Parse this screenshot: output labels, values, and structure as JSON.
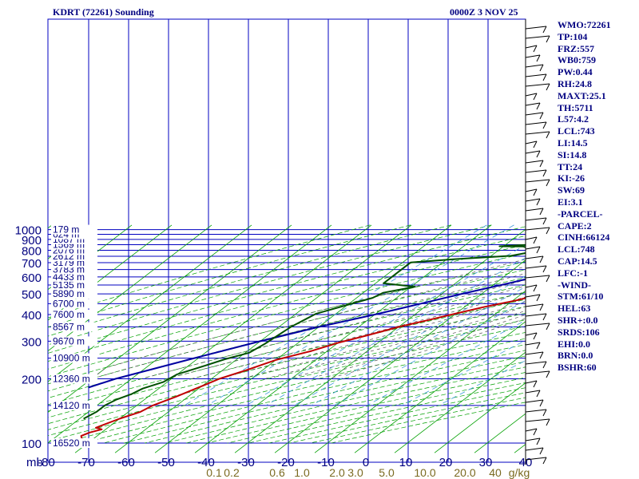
{
  "header": {
    "title": "KDRT (72261) Sounding",
    "datetime": "0000Z  3 NOV 25"
  },
  "indices": [
    "WMO:72261",
    "TP:104",
    "FRZ:557",
    "WB0:759",
    "PW:0.44",
    "RH:24.8",
    "MAXT:25.1",
    "TH:5711",
    "L57:4.2",
    "LCL:743",
    "LI:14.5",
    "SI:14.8",
    "TT:24",
    "KI:-26",
    "SW:69",
    "EI:3.1",
    "-PARCEL-",
    "CAPE:2",
    "CINH:66124",
    "LCL:748",
    "CAP:14.5",
    "LFC:-1",
    "-WIND-",
    "STM:61/10",
    "HEL:63",
    "SHR+:0.0",
    "SRDS:106",
    "EHI:0.0",
    "BRN:0.0",
    "BSHR:60"
  ],
  "colors": {
    "grid": "#0000c0",
    "label": "#000080",
    "dry_adiabat": "#00a000",
    "moist_adiabat": "#505050",
    "mixing_ratio": "#3c9ad8",
    "temperature": "#c00000",
    "dewpoint": "#005000",
    "parcel": "#0000a0",
    "mixing_label": "#7a6a20"
  },
  "chart_data": {
    "type": "skew-t",
    "xlabel": "mb",
    "temperature_ticks": [
      -80,
      -70,
      -60,
      -50,
      -40,
      -30,
      -20,
      -10,
      0,
      10,
      20,
      30,
      40
    ],
    "temperature_tick_labels": [
      "-80",
      "-70",
      "-60",
      "-50",
      "-40",
      "-30",
      "-20",
      "-10",
      "0",
      "10",
      "20",
      "30",
      "40"
    ],
    "pressure_levels": [
      100,
      200,
      300,
      400,
      500,
      600,
      700,
      800,
      900,
      1000
    ],
    "pressure_tick_labels": [
      "100",
      "200",
      "300",
      "400",
      "500",
      "600",
      "700",
      "800",
      "900",
      "1000"
    ],
    "height_labels": [
      {
        "p": 100,
        "label": "16520 m"
      },
      {
        "p": 150,
        "label": "14120 m"
      },
      {
        "p": 200,
        "label": "12360 m"
      },
      {
        "p": 250,
        "label": "10900 m"
      },
      {
        "p": 300,
        "label": "9670 m"
      },
      {
        "p": 350,
        "label": "8567 m"
      },
      {
        "p": 400,
        "label": "7600 m"
      },
      {
        "p": 450,
        "label": "6700 m"
      },
      {
        "p": 500,
        "label": "5890 m"
      },
      {
        "p": 550,
        "label": "5135 m"
      },
      {
        "p": 600,
        "label": "4433 m"
      },
      {
        "p": 650,
        "label": "3783 m"
      },
      {
        "p": 700,
        "label": "3179 m"
      },
      {
        "p": 750,
        "label": "2612 m"
      },
      {
        "p": 800,
        "label": "2076 m"
      },
      {
        "p": 850,
        "label": "1569 m"
      },
      {
        "p": 900,
        "label": "1087 m"
      },
      {
        "p": 950,
        "label": "624 m"
      },
      {
        "p": 1000,
        "label": "179 m"
      }
    ],
    "mixing_ratio_labels": [
      "0.1",
      "0.2",
      "0.6",
      "1.0",
      "2.0",
      "3.0",
      "5.0",
      "10.0",
      "20.0",
      "40",
      "g/kg"
    ],
    "temperature_profile": [
      [
        954,
        27
      ],
      [
        934,
        30
      ],
      [
        916,
        31
      ],
      [
        900,
        29
      ],
      [
        879,
        26
      ],
      [
        816,
        23
      ],
      [
        784,
        20
      ],
      [
        745,
        16
      ],
      [
        709,
        13
      ],
      [
        683,
        11
      ],
      [
        662,
        11
      ],
      [
        646,
        10
      ],
      [
        627,
        11
      ],
      [
        612,
        10
      ],
      [
        590,
        7
      ],
      [
        565,
        3
      ],
      [
        530,
        -2
      ],
      [
        500,
        -5
      ],
      [
        467,
        -9
      ],
      [
        435,
        -15
      ],
      [
        405,
        -20
      ],
      [
        376,
        -25
      ],
      [
        350,
        -30
      ],
      [
        320,
        -35
      ],
      [
        295,
        -40
      ],
      [
        270,
        -44
      ],
      [
        245,
        -50
      ],
      [
        220,
        -54
      ],
      [
        200,
        -58
      ],
      [
        185,
        -60
      ],
      [
        165,
        -63
      ],
      [
        150,
        -66
      ],
      [
        140,
        -67
      ],
      [
        130,
        -70
      ],
      [
        122,
        -72
      ],
      [
        118,
        -73
      ],
      [
        116,
        -71
      ],
      [
        112,
        -73
      ],
      [
        108,
        -74
      ],
      [
        105,
        -73
      ],
      [
        100,
        -74
      ]
    ],
    "dewpoint_profile": [
      [
        954,
        -4
      ],
      [
        934,
        -4
      ],
      [
        916,
        -5
      ],
      [
        904,
        -6
      ],
      [
        896,
        -9
      ],
      [
        870,
        -15
      ],
      [
        835,
        -31
      ],
      [
        833,
        -25
      ],
      [
        810,
        -22
      ],
      [
        787,
        -21
      ],
      [
        754,
        -25
      ],
      [
        727,
        -38
      ],
      [
        702,
        -48
      ],
      [
        660,
        -48
      ],
      [
        600,
        -48
      ],
      [
        560,
        -48
      ],
      [
        540,
        -39
      ],
      [
        506,
        -45
      ],
      [
        479,
        -46
      ],
      [
        444,
        -50
      ],
      [
        403,
        -55
      ],
      [
        349,
        -57
      ],
      [
        291,
        -58
      ],
      [
        265,
        -59
      ],
      [
        247,
        -63
      ],
      [
        230,
        -66
      ],
      [
        210,
        -70
      ],
      [
        193,
        -71
      ],
      [
        180,
        -74
      ],
      [
        170,
        -75
      ],
      [
        160,
        -77
      ],
      [
        150,
        -78
      ],
      [
        140,
        -78
      ],
      [
        130,
        -79
      ]
    ],
    "parcel_profile": [
      [
        954,
        27
      ],
      [
        900,
        21
      ],
      [
        850,
        15
      ],
      [
        800,
        9
      ],
      [
        750,
        4
      ],
      [
        700,
        -1
      ],
      [
        650,
        -6
      ],
      [
        600,
        -12
      ],
      [
        550,
        -18
      ],
      [
        500,
        -25
      ],
      [
        450,
        -32
      ],
      [
        400,
        -40
      ],
      [
        350,
        -50
      ],
      [
        300,
        -60
      ],
      [
        250,
        -71
      ],
      [
        200,
        -84
      ],
      [
        182,
        -88
      ]
    ],
    "dry_adiabats_theta": [
      200,
      210,
      220,
      230,
      240,
      250,
      260,
      270,
      280,
      290,
      300,
      310,
      320,
      330,
      340,
      350,
      360,
      370,
      380,
      390,
      400,
      410,
      420,
      430,
      440,
      450,
      460,
      470,
      480,
      490,
      500,
      510
    ],
    "moist_adiabats_theta_e": [
      280,
      290,
      300,
      310,
      320,
      330,
      340,
      350,
      360,
      370,
      380,
      390
    ],
    "mixing_ratios_gkg": [
      0.1,
      0.2,
      0.6,
      1.0,
      2.0,
      3.0,
      5.0,
      10.0,
      20.0,
      40.0
    ]
  }
}
